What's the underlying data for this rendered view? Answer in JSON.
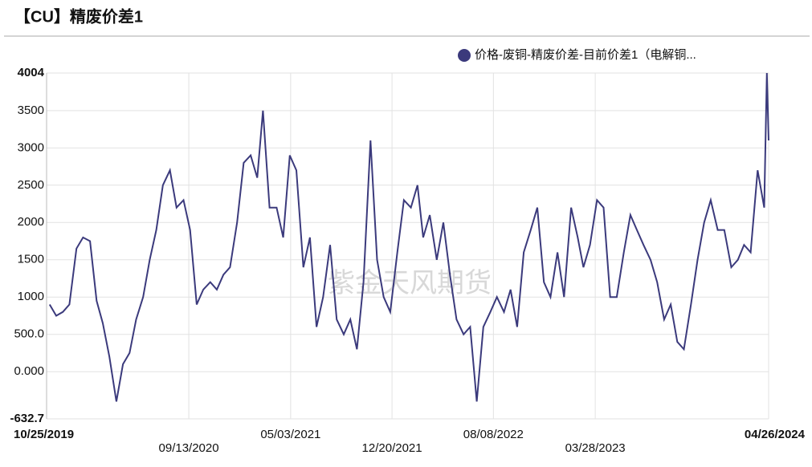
{
  "chart_data": {
    "type": "line",
    "title": "【CU】精废价差1",
    "watermark": "紫金天风期货",
    "x": [
      "11/01/2019",
      "11/16/2019",
      "12/01/2019",
      "12/16/2019",
      "01/01/2020",
      "01/16/2020",
      "02/01/2020",
      "02/16/2020",
      "03/01/2020",
      "03/16/2020",
      "04/01/2020",
      "04/16/2020",
      "05/01/2020",
      "05/16/2020",
      "06/01/2020",
      "06/16/2020",
      "07/01/2020",
      "07/16/2020",
      "08/01/2020",
      "08/16/2020",
      "09/01/2020",
      "09/16/2020",
      "10/01/2020",
      "10/16/2020",
      "11/01/2020",
      "11/16/2020",
      "12/01/2020",
      "12/16/2020",
      "01/01/2021",
      "01/16/2021",
      "02/01/2021",
      "02/16/2021",
      "03/01/2021",
      "03/16/2021",
      "04/01/2021",
      "04/16/2021",
      "05/01/2021",
      "05/16/2021",
      "06/01/2021",
      "06/16/2021",
      "07/01/2021",
      "07/16/2021",
      "08/01/2021",
      "08/16/2021",
      "09/01/2021",
      "09/16/2021",
      "10/01/2021",
      "10/16/2021",
      "11/01/2021",
      "11/16/2021",
      "12/01/2021",
      "12/16/2021",
      "01/01/2022",
      "01/16/2022",
      "02/01/2022",
      "02/16/2022",
      "03/01/2022",
      "03/16/2022",
      "04/01/2022",
      "04/16/2022",
      "05/01/2022",
      "05/16/2022",
      "06/01/2022",
      "06/16/2022",
      "07/01/2022",
      "07/16/2022",
      "08/01/2022",
      "08/16/2022",
      "09/01/2022",
      "09/16/2022",
      "10/01/2022",
      "10/16/2022",
      "11/01/2022",
      "11/16/2022",
      "12/01/2022",
      "12/16/2022",
      "01/01/2023",
      "01/16/2023",
      "02/01/2023",
      "02/16/2023",
      "03/01/2023",
      "03/16/2023",
      "04/01/2023",
      "04/16/2023",
      "05/01/2023",
      "05/16/2023",
      "06/01/2023",
      "06/16/2023",
      "07/01/2023",
      "07/16/2023",
      "08/01/2023",
      "08/16/2023",
      "09/01/2023",
      "09/16/2023",
      "10/01/2023",
      "10/16/2023",
      "11/01/2023",
      "11/16/2023",
      "12/01/2023",
      "12/16/2023",
      "01/01/2024",
      "01/16/2024",
      "02/01/2024",
      "02/16/2024",
      "03/01/2024",
      "03/16/2024",
      "04/01/2024",
      "04/16/2024",
      "04/22/2024",
      "04/26/2024"
    ],
    "series": [
      {
        "name": "价格-废铜-精废价差-目前价差1（电解铜...",
        "color": "#3b3a7c",
        "values": [
          900,
          750,
          800,
          900,
          1650,
          1800,
          1750,
          950,
          650,
          200,
          -400,
          100,
          250,
          700,
          1000,
          1500,
          1900,
          2500,
          2700,
          2200,
          2300,
          1900,
          900,
          1100,
          1200,
          1100,
          1300,
          1400,
          2000,
          2800,
          2900,
          2600,
          3500,
          2200,
          2200,
          1800,
          2900,
          2700,
          1400,
          1800,
          600,
          1000,
          1700,
          700,
          500,
          700,
          300,
          1200,
          3100,
          1500,
          1000,
          800,
          1600,
          2300,
          2200,
          2500,
          1800,
          2100,
          1500,
          2000,
          1300,
          700,
          500,
          600,
          -400,
          600,
          800,
          1000,
          800,
          1100,
          600,
          1600,
          1900,
          2200,
          1200,
          1000,
          1600,
          1000,
          2200,
          1800,
          1400,
          1700,
          2300,
          2200,
          1000,
          1000,
          1600,
          2100,
          1900,
          1700,
          1500,
          1200,
          700,
          900,
          400,
          300,
          900,
          1500,
          2000,
          2300,
          1900,
          1900,
          1400,
          1500,
          1700,
          1600,
          2700,
          2200,
          4004,
          3100
        ]
      }
    ],
    "xlim": [
      "10/25/2019",
      "04/26/2024"
    ],
    "xticks": [
      "10/25/2019",
      "09/13/2020",
      "05/03/2021",
      "12/20/2021",
      "08/08/2022",
      "03/28/2023",
      "04/26/2024"
    ],
    "ylim": [
      -632.7,
      4004
    ],
    "yticks": [
      -632.7,
      {
        "value": 0,
        "label": "0.000"
      },
      {
        "value": 500,
        "label": "500.0"
      },
      1000,
      1500,
      2000,
      2500,
      3000,
      3500,
      4004
    ],
    "grid": true,
    "legend": "top-right"
  }
}
